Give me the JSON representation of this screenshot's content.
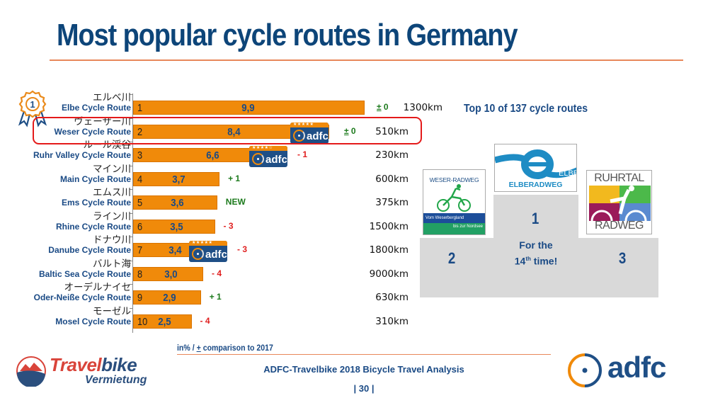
{
  "title": "Most popular cycle routes in Germany",
  "subtitle": "Top 10 of 137 cycle routes",
  "chart_data": {
    "type": "bar",
    "orientation": "horizontal",
    "title": "Most popular cycle routes in Germany",
    "xlabel": "in% / ± comparison to 2017",
    "xlim": [
      0,
      10
    ],
    "categories": [
      "Elbe Cycle Route",
      "Weser Cycle Route",
      "Ruhr Valley Cycle Route",
      "Main Cycle Route",
      "Ems Cycle Route",
      "Rhine Cycle Route",
      "Danube Cycle Route",
      "Baltic Sea Cycle Route",
      "Oder-Neiße Cycle Route",
      "Mosel Cycle Route"
    ],
    "values": [
      9.9,
      8.4,
      6.6,
      3.7,
      3.6,
      3.5,
      3.4,
      3.0,
      2.9,
      2.5
    ],
    "rows": [
      {
        "rank": "1",
        "jp": "エルベ川",
        "en": "Elbe Cycle Route",
        "value": 9.9,
        "value_label": "9,9",
        "change": "0",
        "change_label": "± 0",
        "change_type": "neu",
        "length": "1300km",
        "adfc_stars": null
      },
      {
        "rank": "2",
        "jp": "ヴェーザー川",
        "en": "Weser Cycle Route",
        "value": 8.4,
        "value_label": "8,4",
        "change": "0",
        "change_label": "± 0",
        "change_type": "neu",
        "length": "510km",
        "adfc_stars": "★★★★★"
      },
      {
        "rank": "3",
        "jp": "ルール渓谷",
        "en": "Ruhr Valley Cycle Route",
        "value": 6.6,
        "value_label": "6,6",
        "change": "-1",
        "change_label": "- 1",
        "change_type": "neg",
        "length": "230km",
        "adfc_stars": "★★★★☆"
      },
      {
        "rank": "4",
        "jp": "マイン川",
        "en": "Main Cycle Route",
        "value": 3.7,
        "value_label": "3,7",
        "change": "+1",
        "change_label": "+ 1",
        "change_type": "pos",
        "length": "600km",
        "adfc_stars": null
      },
      {
        "rank": "5",
        "jp": "エムス川",
        "en": "Ems Cycle Route",
        "value": 3.6,
        "value_label": "3,6",
        "change": "NEW",
        "change_label": "NEW",
        "change_type": "pos",
        "length": "375km",
        "adfc_stars": null
      },
      {
        "rank": "6",
        "jp": "ライン川",
        "en": "Rhine Cycle Route",
        "value": 3.5,
        "value_label": "3,5",
        "change": "-3",
        "change_label": "- 3",
        "change_type": "neg",
        "length": "1500km",
        "adfc_stars": null
      },
      {
        "rank": "7",
        "jp": "ドナウ川",
        "en": "Danube Cycle Route",
        "value": 3.4,
        "value_label": "3,4",
        "change": "-3",
        "change_label": "- 3",
        "change_type": "neg",
        "length": "1800km",
        "adfc_stars": "★★★★★"
      },
      {
        "rank": "8",
        "jp": "バルト海",
        "en": "Baltic Sea Cycle Route",
        "value": 3.0,
        "value_label": "3,0",
        "change": "-4",
        "change_label": "- 4",
        "change_type": "neg",
        "length": "9000km",
        "adfc_stars": null
      },
      {
        "rank": "9",
        "jp": "オーデルナイセ",
        "en": "Oder-Neiße Cycle Route",
        "value": 2.9,
        "value_label": "2,9",
        "change": "+1",
        "change_label": "+ 1",
        "change_type": "pos",
        "length": "630km",
        "adfc_stars": null
      },
      {
        "rank": "10",
        "jp": "モーゼル",
        "en": "Mosel Cycle Route",
        "value": 2.5,
        "value_label": "2,5",
        "change": "-4",
        "change_label": "- 4",
        "change_type": "neg",
        "length": "310km",
        "adfc_stars": null
      }
    ],
    "highlighted_row": "Weser Cycle Route",
    "colors": {
      "bar": "#f08a0a",
      "value_text": "#1a4a85",
      "positive": "#1c7a1c",
      "negative": "#e02020",
      "highlight": "#e41a1a"
    }
  },
  "medal": {
    "icon": "rosette-medal-icon",
    "number": "1"
  },
  "adfc_badge_text": "adfc",
  "podium": {
    "first": {
      "place": "1",
      "logo_top": "ELBE",
      "logo_bottom": "ELBERADWEG"
    },
    "second": {
      "place": "2",
      "logo_title": "WESER-RADWEG",
      "logo_line1": "Vom Weserbergland",
      "logo_line2": "bis zur Nordsee"
    },
    "third": {
      "place": "3",
      "logo_top": "RUHRTAL",
      "logo_bottom": "RADWEG"
    },
    "note_line1": "For the",
    "note_num": "14",
    "note_sup": "th",
    "note_rest": " time!"
  },
  "footer": {
    "note_prefix": "in% / ",
    "note_pm": "+",
    "note_suffix": " comparison to 2017",
    "title": "ADFC-Travelbike 2018 Bicycle Travel Analysis",
    "page": "|  30  |",
    "travelbike_part1": "Travel",
    "travelbike_part2": "bike",
    "travelbike_sub": "Vermietung",
    "adfc_logo": "adfc"
  },
  "colors": {
    "title": "#0d4579",
    "accent_rule": "#e8875a",
    "podium": "#d9d9d9"
  }
}
